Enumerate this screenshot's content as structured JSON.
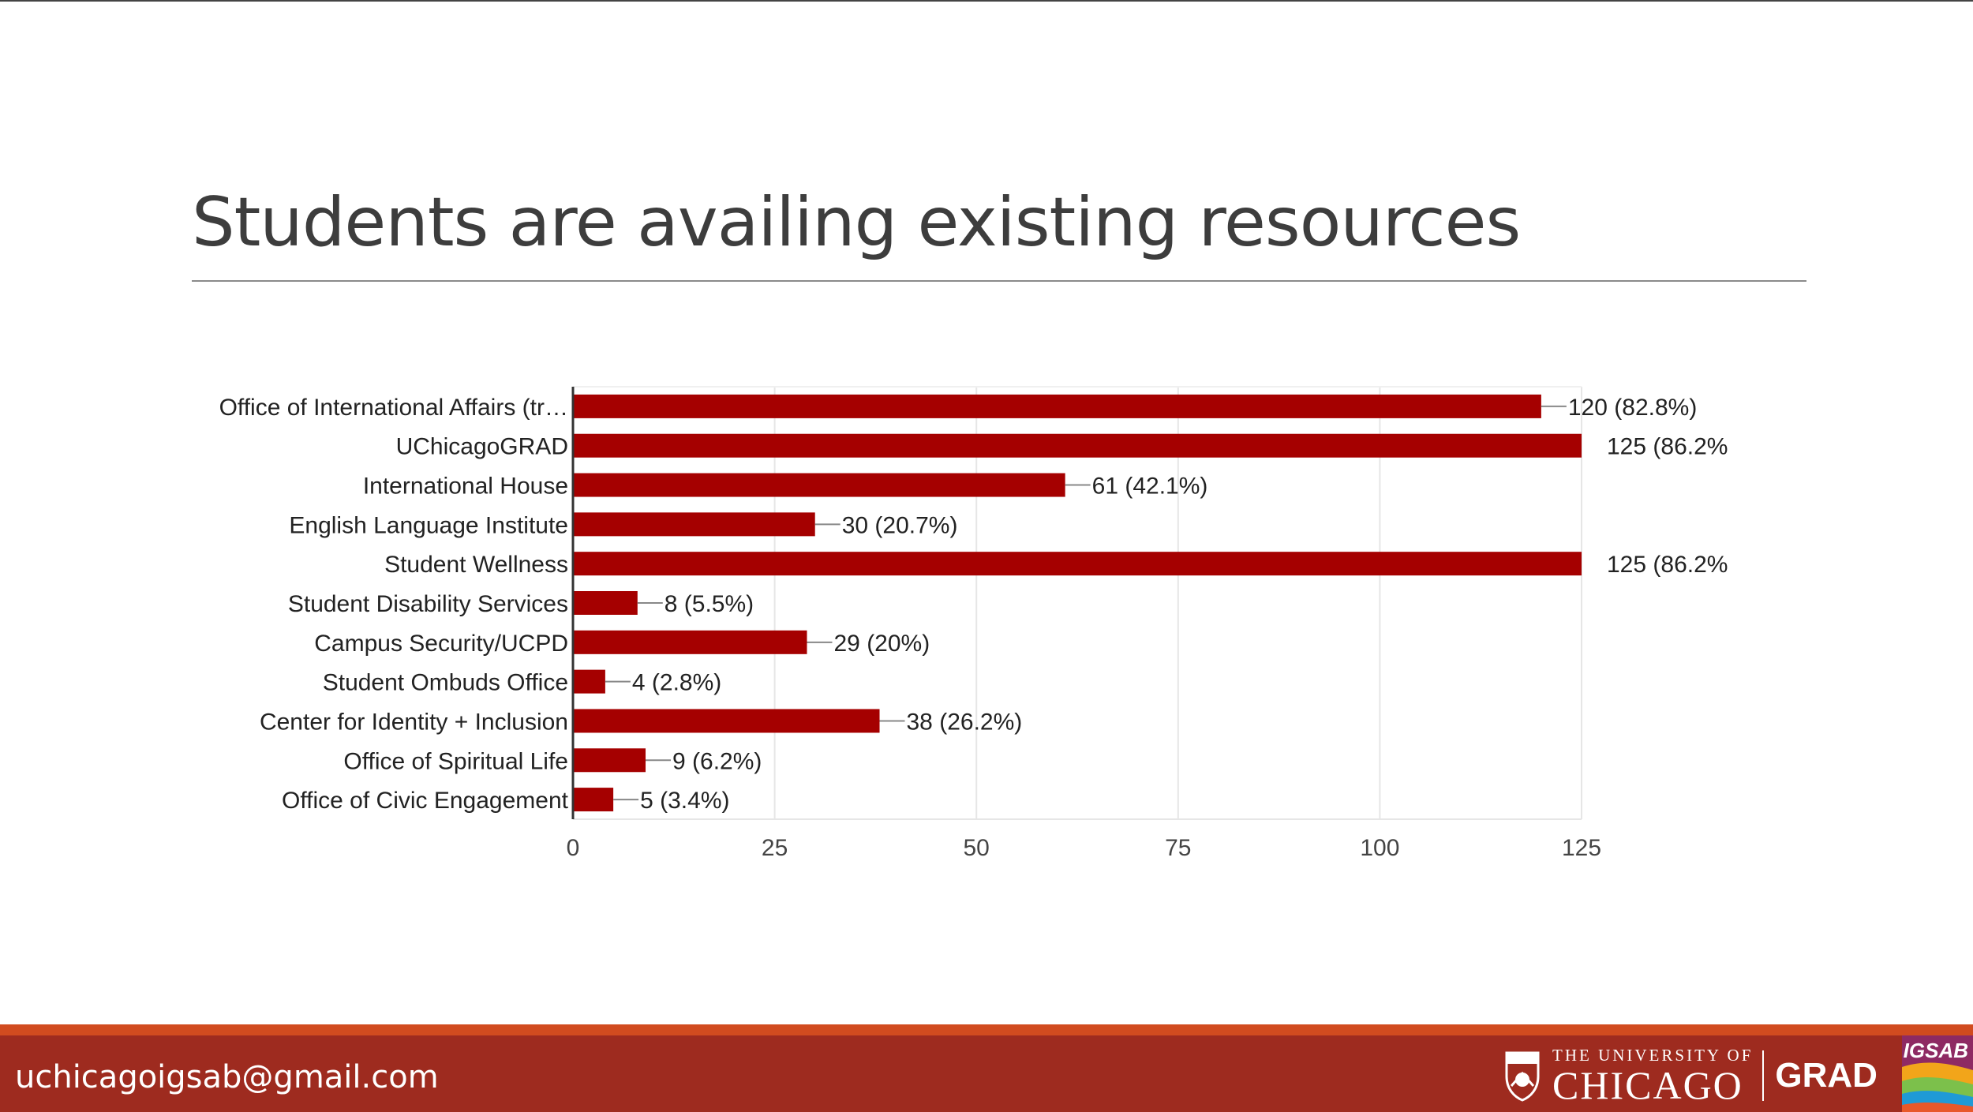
{
  "slide": {
    "title": "Students are availing existing resources",
    "footer_email": "uchicagoigsab@gmail.com",
    "logo_university_sub": "THE UNIVERSITY OF",
    "logo_university_main": "CHICAGO",
    "logo_grad": "GRAD",
    "logo_igsab": "IGSAB"
  },
  "colors": {
    "bar": "#a50000",
    "footer": "#9e2b1f",
    "footer_stripe": "#d14b1f",
    "title": "#3d3d3d"
  },
  "chart_data": {
    "type": "bar",
    "orientation": "horizontal",
    "title": "",
    "xlabel": "",
    "ylabel": "",
    "xlim": [
      0,
      125
    ],
    "xticks": [
      0,
      25,
      50,
      75,
      100,
      125
    ],
    "grid": true,
    "categories": [
      "Office of International Affairs (tr…",
      "UChicagoGRAD",
      "International House",
      "English Language Institute",
      "Student Wellness",
      "Student Disability Services",
      "Campus Security/UCPD",
      "Student Ombuds Office",
      "Center for Identity + Inclusion",
      "Office of Spiritual Life",
      "Office of Civic Engagement"
    ],
    "values": [
      120,
      125,
      61,
      30,
      125,
      8,
      29,
      4,
      38,
      9,
      5
    ],
    "labels": [
      "120 (82.8%)",
      "125 (86.2%",
      "61 (42.1%)",
      "30 (20.7%)",
      "125 (86.2%",
      "8 (5.5%)",
      "29 (20%)",
      "4 (2.8%)",
      "38 (26.2%)",
      "9 (6.2%)",
      "5 (3.4%)"
    ]
  }
}
